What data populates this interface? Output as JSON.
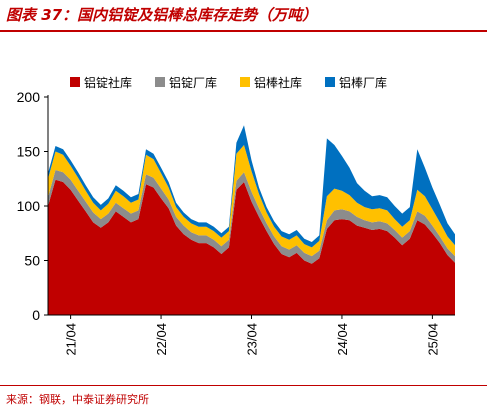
{
  "header": {
    "title": "图表 37：国内铝锭及铝棒总库存走势（万吨）"
  },
  "footer": {
    "source": "来源：钢联，中泰证券研究所"
  },
  "colors": {
    "accent": "#C00000",
    "series": [
      "#C00000",
      "#8C8C8C",
      "#FFC000",
      "#0070C0"
    ]
  },
  "chart_data": {
    "type": "area",
    "stacked": true,
    "title": "",
    "xlabel": "",
    "ylabel": "",
    "ylim": [
      0,
      200
    ],
    "yticks": [
      0,
      50,
      100,
      150,
      200
    ],
    "xticks": [
      "21/04",
      "22/04",
      "23/04",
      "24/04",
      "25/04"
    ],
    "x_range": [
      "21/01",
      "25/07"
    ],
    "grid": false,
    "legend": "top",
    "x": [
      "21/01",
      "21/02",
      "21/03",
      "21/04",
      "21/05",
      "21/06",
      "21/07",
      "21/08",
      "21/09",
      "21/10",
      "21/11",
      "21/12",
      "22/01",
      "22/02",
      "22/03",
      "22/04",
      "22/05",
      "22/06",
      "22/07",
      "22/08",
      "22/09",
      "22/10",
      "22/11",
      "22/12",
      "23/01",
      "23/02",
      "23/03",
      "23/04",
      "23/05",
      "23/06",
      "23/07",
      "23/08",
      "23/09",
      "23/10",
      "23/11",
      "23/12",
      "24/01",
      "24/02",
      "24/03",
      "24/04",
      "24/05",
      "24/06",
      "24/07",
      "24/08",
      "24/09",
      "24/10",
      "24/11",
      "24/12",
      "25/01",
      "25/02",
      "25/03",
      "25/04",
      "25/05",
      "25/06",
      "25/07"
    ],
    "series": [
      {
        "name": "铝锭社库",
        "values": [
          100,
          124,
          122,
          115,
          105,
          95,
          85,
          80,
          85,
          95,
          90,
          85,
          88,
          120,
          117,
          107,
          98,
          82,
          74,
          69,
          66,
          66,
          62,
          56,
          62,
          115,
          122,
          104,
          90,
          77,
          65,
          56,
          53,
          57,
          50,
          47,
          52,
          79,
          87,
          88,
          87,
          82,
          80,
          78,
          79,
          77,
          71,
          64,
          70,
          87,
          83,
          75,
          66,
          55,
          48
        ]
      },
      {
        "name": "铝锭厂库",
        "values": [
          8,
          9,
          9,
          9,
          9,
          9,
          9,
          8,
          8,
          8,
          8,
          8,
          8,
          9,
          9,
          9,
          8,
          8,
          8,
          7,
          7,
          7,
          7,
          7,
          7,
          8,
          9,
          9,
          8,
          7,
          7,
          7,
          7,
          7,
          7,
          7,
          7,
          8,
          9,
          9,
          8,
          8,
          7,
          7,
          7,
          7,
          7,
          7,
          7,
          8,
          8,
          7,
          6,
          6,
          6
        ]
      },
      {
        "name": "铝棒社库",
        "values": [
          17,
          17,
          16,
          13,
          12,
          10,
          9,
          8,
          9,
          11,
          11,
          10,
          10,
          18,
          17,
          14,
          11,
          9,
          8,
          8,
          8,
          8,
          8,
          8,
          8,
          25,
          25,
          19,
          13,
          10,
          9,
          9,
          9,
          9,
          8,
          8,
          9,
          22,
          20,
          17,
          15,
          13,
          12,
          12,
          12,
          12,
          10,
          10,
          10,
          20,
          18,
          15,
          13,
          11,
          10
        ]
      },
      {
        "name": "铝棒厂库",
        "values": [
          5,
          5,
          5,
          5,
          5,
          5,
          5,
          5,
          5,
          5,
          5,
          5,
          5,
          5,
          5,
          5,
          5,
          4,
          4,
          4,
          4,
          4,
          4,
          4,
          4,
          10,
          18,
          10,
          6,
          5,
          5,
          5,
          5,
          5,
          5,
          5,
          5,
          53,
          40,
          32,
          25,
          18,
          15,
          12,
          12,
          12,
          12,
          12,
          12,
          37,
          26,
          20,
          16,
          12,
          10
        ]
      }
    ]
  }
}
